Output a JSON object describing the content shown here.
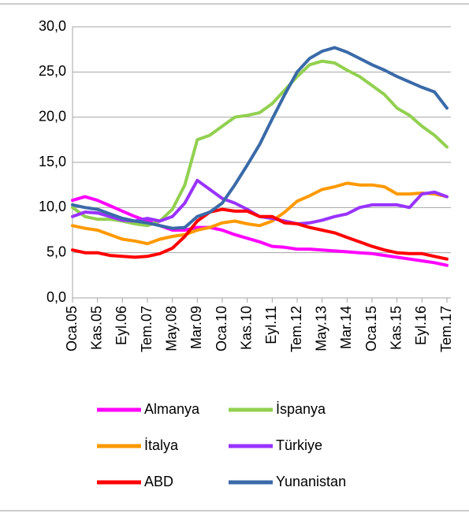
{
  "chart_data": {
    "type": "line",
    "categories": [
      "Oca.05",
      null,
      "Kas.05",
      null,
      "Eyl.06",
      null,
      "Tem.07",
      null,
      "May.08",
      null,
      "Mar.09",
      null,
      "Oca.10",
      null,
      "Kas.10",
      null,
      "Eyl.11",
      null,
      "Tem.12",
      null,
      "May.13",
      null,
      "Mar.14",
      null,
      "Oca.15",
      null,
      "Kas.15",
      null,
      "Eyl.16",
      null,
      "Tem.17"
    ],
    "series": [
      {
        "name": "Almanya",
        "color": "#ff00ff",
        "values": [
          10.8,
          11.2,
          10.8,
          10.2,
          9.6,
          9.0,
          8.5,
          8.0,
          7.5,
          7.5,
          7.8,
          7.8,
          7.5,
          7.0,
          6.6,
          6.2,
          5.7,
          5.6,
          5.4,
          5.4,
          5.3,
          5.2,
          5.1,
          5.0,
          4.9,
          4.7,
          4.5,
          4.3,
          4.1,
          3.9,
          3.6
        ]
      },
      {
        "name": "İspanya",
        "color": "#92d050",
        "values": [
          10.0,
          9.0,
          8.7,
          8.7,
          8.5,
          8.2,
          8.0,
          8.5,
          9.8,
          12.5,
          17.5,
          18.0,
          19.0,
          20.0,
          20.2,
          20.5,
          21.5,
          23.0,
          24.5,
          25.8,
          26.2,
          26.0,
          25.2,
          24.5,
          23.5,
          22.5,
          21.0,
          20.2,
          19.0,
          18.0,
          16.7
        ]
      },
      {
        "name": "İtalya",
        "color": "#ff9900",
        "values": [
          8.0,
          7.7,
          7.5,
          7.0,
          6.5,
          6.3,
          6.0,
          6.5,
          6.8,
          7.0,
          7.5,
          7.8,
          8.3,
          8.5,
          8.2,
          8.0,
          8.5,
          9.5,
          10.7,
          11.3,
          12.0,
          12.3,
          12.7,
          12.5,
          12.5,
          12.3,
          11.5,
          11.5,
          11.6,
          11.5,
          11.2
        ]
      },
      {
        "name": "Türkiye",
        "color": "#9933ff",
        "values": [
          9.0,
          9.5,
          9.4,
          9.0,
          8.6,
          8.5,
          8.8,
          8.5,
          9.0,
          10.5,
          13.0,
          12.0,
          11.0,
          10.5,
          9.8,
          9.0,
          8.8,
          8.5,
          8.2,
          8.3,
          8.6,
          9.0,
          9.3,
          10.0,
          10.3,
          10.3,
          10.3,
          10.0,
          11.5,
          11.7,
          11.2
        ]
      },
      {
        "name": "ABD",
        "color": "#ff0000",
        "values": [
          5.3,
          5.0,
          5.0,
          4.7,
          4.6,
          4.5,
          4.6,
          4.9,
          5.5,
          6.8,
          8.5,
          9.5,
          9.8,
          9.6,
          9.6,
          9.0,
          9.0,
          8.3,
          8.2,
          7.8,
          7.5,
          7.2,
          6.7,
          6.2,
          5.7,
          5.3,
          5.0,
          4.9,
          4.9,
          4.6,
          4.3
        ]
      },
      {
        "name": "Yunanistan",
        "color": "#3a6aa8",
        "values": [
          10.3,
          10.0,
          9.8,
          9.3,
          8.8,
          8.5,
          8.3,
          8.0,
          7.7,
          7.8,
          9.0,
          9.5,
          10.5,
          12.5,
          14.7,
          17.0,
          19.8,
          22.5,
          25.0,
          26.5,
          27.3,
          27.7,
          27.2,
          26.5,
          25.8,
          25.2,
          24.5,
          23.9,
          23.3,
          22.8,
          21.0
        ]
      }
    ],
    "ylim": [
      0,
      30
    ],
    "yticks": [
      {
        "value": 0,
        "label": "0,0"
      },
      {
        "value": 5,
        "label": "5,0"
      },
      {
        "value": 10,
        "label": "10,0"
      },
      {
        "value": 15,
        "label": "15,0"
      },
      {
        "value": 20,
        "label": "20,0"
      },
      {
        "value": 25,
        "label": "25,0"
      },
      {
        "value": 30,
        "label": "30,0"
      }
    ],
    "grid": true,
    "legend": "bottom"
  }
}
